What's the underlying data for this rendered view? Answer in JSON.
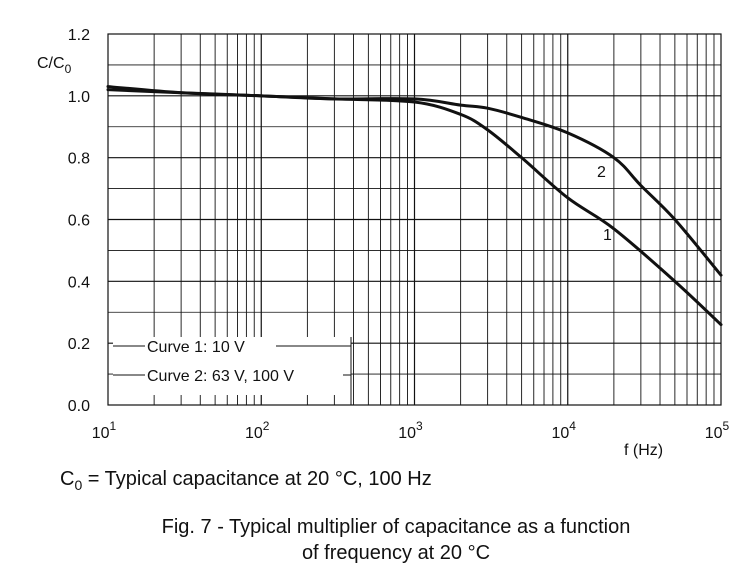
{
  "chart_data": {
    "type": "line",
    "ylabel": "C/C",
    "ylabel_sub": "0",
    "xlabel": "f (Hz)",
    "x_scale": "log",
    "xlim": [
      10,
      100000
    ],
    "ylim": [
      0,
      1.2
    ],
    "grid": true,
    "x_ticks": [
      {
        "base": "10",
        "exp": "1"
      },
      {
        "base": "10",
        "exp": "2"
      },
      {
        "base": "10",
        "exp": "3"
      },
      {
        "base": "10",
        "exp": "4"
      },
      {
        "base": "10",
        "exp": "5"
      }
    ],
    "y_ticks": [
      "0.0",
      "0.2",
      "0.4",
      "0.6",
      "0.8",
      "1.0",
      "1.2"
    ],
    "series": [
      {
        "name": "1",
        "x": [
          10,
          30,
          100,
          300,
          1000,
          2000,
          3000,
          5000,
          10000,
          20000,
          50000,
          100000
        ],
        "y": [
          1.03,
          1.01,
          1.0,
          0.99,
          0.98,
          0.94,
          0.89,
          0.8,
          0.67,
          0.57,
          0.4,
          0.26
        ]
      },
      {
        "name": "2",
        "x": [
          10,
          30,
          100,
          300,
          1000,
          2000,
          3000,
          5000,
          10000,
          20000,
          30000,
          50000,
          100000
        ],
        "y": [
          1.02,
          1.01,
          1.0,
          0.99,
          0.99,
          0.97,
          0.96,
          0.93,
          0.88,
          0.8,
          0.71,
          0.6,
          0.42
        ]
      }
    ],
    "legend": [
      "Curve 1: 10 V",
      "Curve 2: 63 V, 100 V"
    ],
    "legend_position": "bottom-left"
  },
  "note": {
    "c": "C",
    "sub": "0",
    "text": " = Typical capacitance at 20 °C, 100 Hz"
  },
  "caption": {
    "line1": "Fig. 7 - Typical multiplier of capacitance as a function",
    "line2": "of frequency at 20 °C"
  }
}
